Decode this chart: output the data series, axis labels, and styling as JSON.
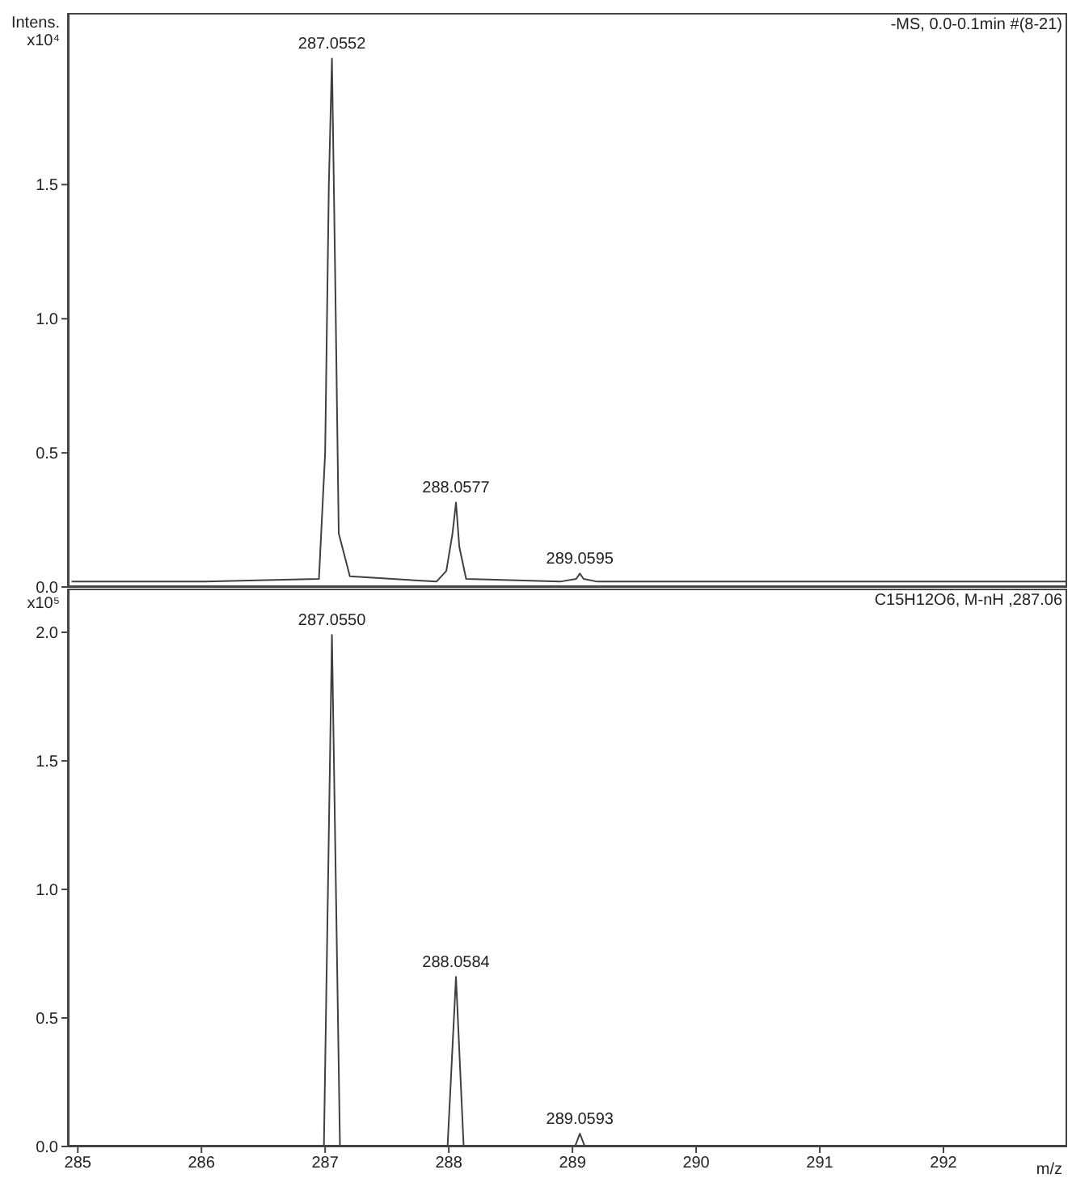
{
  "chart_data": [
    {
      "type": "line",
      "ylabel": "Intens.",
      "annotations": [
        "-MS, 0.0-0.1min #(8-21)",
        "x10⁴",
        {
          "text": "287.0552",
          "x": 287.055,
          "y": 1.97
        },
        {
          "text": "288.0577",
          "x": 288.058,
          "y": 0.315
        },
        {
          "text": "289.0595",
          "x": 289.06,
          "y": 0.05
        }
      ],
      "series": [
        {
          "color": "#404040",
          "x": [
            284.95,
            286.0,
            286.95,
            287.0,
            287.03,
            287.055,
            287.08,
            287.11,
            287.2,
            287.9,
            287.98,
            288.03,
            288.058,
            288.085,
            288.14,
            288.9,
            289.03,
            289.06,
            289.09,
            289.2,
            293.0
          ],
          "values": [
            0.02,
            0.02,
            0.03,
            0.5,
            1.5,
            1.97,
            1.2,
            0.2,
            0.04,
            0.02,
            0.06,
            0.2,
            0.315,
            0.15,
            0.03,
            0.02,
            0.03,
            0.05,
            0.03,
            0.02,
            0.02
          ]
        }
      ],
      "xlim": [
        284.92,
        293.0
      ],
      "xticks": [
        285,
        286,
        287,
        288,
        289,
        290,
        291,
        292
      ],
      "ylim": [
        0,
        2.14
      ],
      "yticks": [
        {
          "value": 0,
          "label": "0.0"
        },
        {
          "value": 0.5,
          "label": "0.5"
        },
        {
          "value": 1,
          "label": "1.0"
        },
        {
          "value": 1.5,
          "label": "1.5"
        }
      ],
      "tick_labels": "y",
      "grid": false,
      "legend": false,
      "marker": "none",
      "line_style": "solid"
    },
    {
      "type": "line",
      "xlabel": "m/z",
      "annotations": [
        "C15H12O6, M-nH ,287.06",
        "x10⁵",
        {
          "text": "287.0550",
          "x": 287.055,
          "y": 1.99
        },
        {
          "text": "288.0584",
          "x": 288.058,
          "y": 0.66
        },
        {
          "text": "289.0593",
          "x": 289.06,
          "y": 0.05
        }
      ],
      "series": [
        {
          "color": "#404040",
          "x": [
            284.95,
            286.99,
            287.055,
            287.12,
            287.99,
            288.058,
            288.12,
            289.02,
            289.06,
            289.1,
            293.0
          ],
          "values": [
            0,
            0,
            1.99,
            0,
            0,
            0.66,
            0,
            0,
            0.05,
            0,
            0
          ]
        }
      ],
      "xlim": [
        284.92,
        293.0
      ],
      "xticks": [
        285,
        286,
        287,
        288,
        289,
        290,
        291,
        292
      ],
      "ylim": [
        0,
        2.17
      ],
      "yticks": [
        {
          "value": 0,
          "label": "0.0"
        },
        {
          "value": 0.5,
          "label": "0.5"
        },
        {
          "value": 1,
          "label": "1.0"
        },
        {
          "value": 1.5,
          "label": "1.5"
        },
        {
          "value": 2,
          "label": "2.0"
        }
      ],
      "grid": false,
      "legend": false,
      "marker": "none",
      "line_style": "solid"
    }
  ]
}
